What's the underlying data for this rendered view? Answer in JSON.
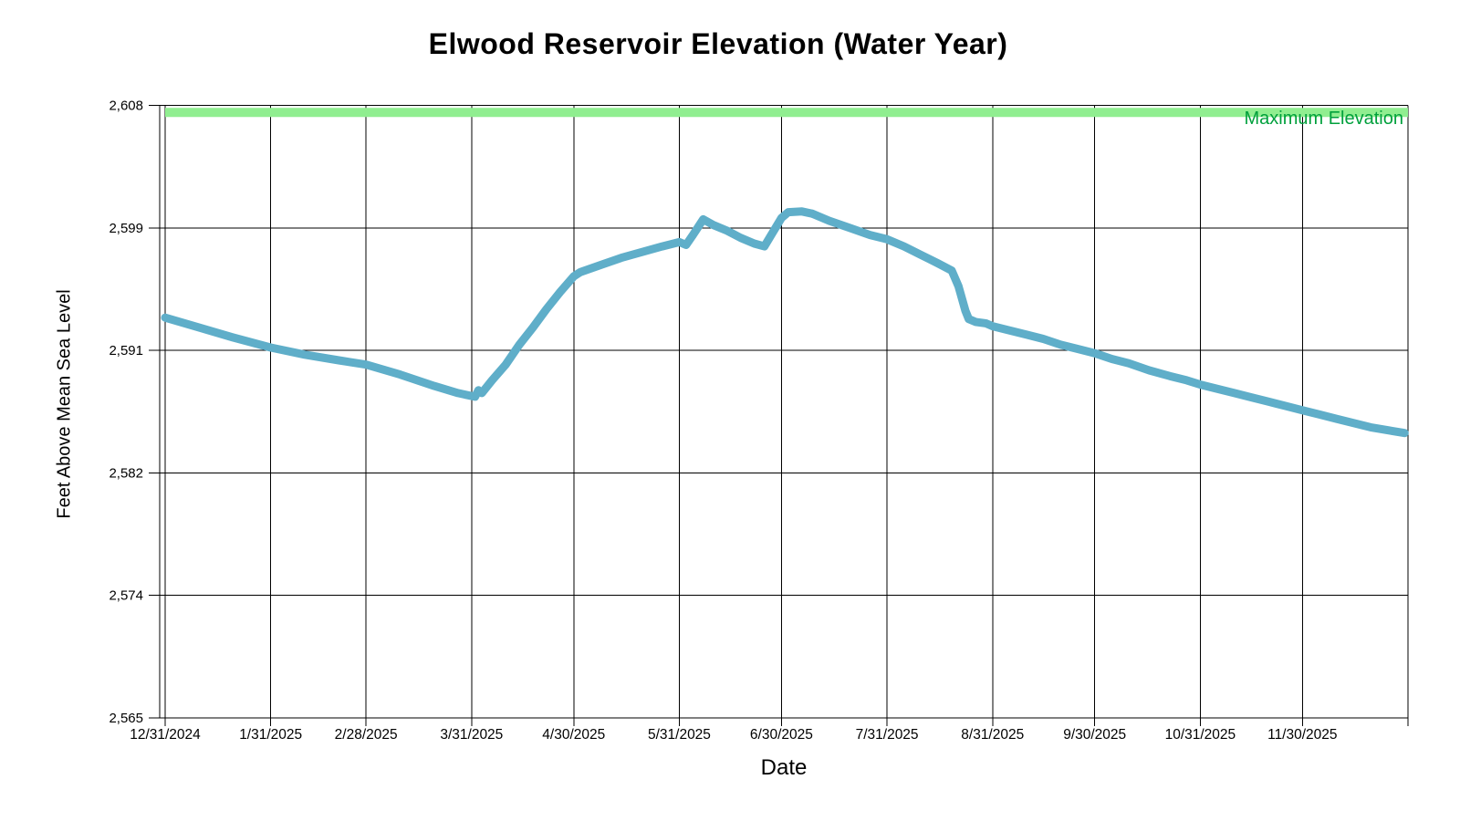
{
  "page": {
    "background": "#ffffff"
  },
  "chart_data": {
    "type": "line",
    "title": "Elwood Reservoir Elevation (Water Year)",
    "xlabel": "Date",
    "ylabel": "Feet Above Mean Sea Level",
    "grid": true,
    "legend_position": "none",
    "x_axis": {
      "start_date": "12/31/2024",
      "end_date": "12/31/2025",
      "ticks": [
        {
          "date": "12/31/2024",
          "label": "12/31/2024"
        },
        {
          "date": "1/31/2025",
          "label": "1/31/2025"
        },
        {
          "date": "2/28/2025",
          "label": "2/28/2025"
        },
        {
          "date": "3/31/2025",
          "label": "3/31/2025"
        },
        {
          "date": "4/30/2025",
          "label": "4/30/2025"
        },
        {
          "date": "5/31/2025",
          "label": "5/31/2025"
        },
        {
          "date": "6/30/2025",
          "label": "6/30/2025"
        },
        {
          "date": "7/31/2025",
          "label": "7/31/2025"
        },
        {
          "date": "8/31/2025",
          "label": "8/31/2025"
        },
        {
          "date": "9/30/2025",
          "label": "9/30/2025"
        },
        {
          "date": "10/31/2025",
          "label": "10/31/2025"
        },
        {
          "date": "11/30/2025",
          "label": "11/30/2025"
        },
        {
          "date": "12/31/2025",
          "label": ""
        }
      ]
    },
    "y_axis": {
      "min": 2565,
      "max": 2608,
      "ticks": [
        {
          "value": 2565,
          "label": "2,565"
        },
        {
          "value": 2573.6,
          "label": "2,574"
        },
        {
          "value": 2582.2,
          "label": "2,582"
        },
        {
          "value": 2590.8,
          "label": "2,591"
        },
        {
          "value": 2599.4,
          "label": "2,599"
        },
        {
          "value": 2608,
          "label": "2,608"
        }
      ]
    },
    "max_elevation": {
      "value": 2607.5,
      "label": "Maximum Elevation",
      "line_color": "#90EE90",
      "line_width": 10,
      "label_color": "#00A03C"
    },
    "series": [
      {
        "name": "elevation",
        "color": "#5FAEC9",
        "line_width": 9,
        "points": [
          [
            "12/31/2024",
            2593.1
          ],
          [
            "1/10/2025",
            2592.4
          ],
          [
            "1/20/2025",
            2591.7
          ],
          [
            "1/31/2025",
            2591.0
          ],
          [
            "2/10/2025",
            2590.5
          ],
          [
            "2/20/2025",
            2590.1
          ],
          [
            "2/28/2025",
            2589.8
          ],
          [
            "3/10/2025",
            2589.1
          ],
          [
            "3/20/2025",
            2588.3
          ],
          [
            "3/27/2025",
            2587.8
          ],
          [
            "3/31/2025",
            2587.6
          ],
          [
            "4/1/2025",
            2587.55
          ],
          [
            "4/2/2025",
            2588.0
          ],
          [
            "4/3/2025",
            2587.8
          ],
          [
            "4/6/2025",
            2588.7
          ],
          [
            "4/10/2025",
            2589.8
          ],
          [
            "4/14/2025",
            2591.2
          ],
          [
            "4/18/2025",
            2592.4
          ],
          [
            "4/22/2025",
            2593.7
          ],
          [
            "4/26/2025",
            2594.9
          ],
          [
            "4/30/2025",
            2596.0
          ],
          [
            "5/2/2025",
            2596.3
          ],
          [
            "5/8/2025",
            2596.8
          ],
          [
            "5/14/2025",
            2597.3
          ],
          [
            "5/20/2025",
            2597.7
          ],
          [
            "5/26/2025",
            2598.1
          ],
          [
            "5/31/2025",
            2598.4
          ],
          [
            "6/2/2025",
            2598.2
          ],
          [
            "6/4/2025",
            2598.9
          ],
          [
            "6/7/2025",
            2600.0
          ],
          [
            "6/10/2025",
            2599.6
          ],
          [
            "6/14/2025",
            2599.2
          ],
          [
            "6/18/2025",
            2598.7
          ],
          [
            "6/22/2025",
            2598.3
          ],
          [
            "6/25/2025",
            2598.1
          ],
          [
            "6/27/2025",
            2598.9
          ],
          [
            "6/30/2025",
            2600.1
          ],
          [
            "7/2/2025",
            2600.5
          ],
          [
            "7/6/2025",
            2600.55
          ],
          [
            "7/9/2025",
            2600.4
          ],
          [
            "7/14/2025",
            2599.9
          ],
          [
            "7/20/2025",
            2599.4
          ],
          [
            "7/26/2025",
            2598.9
          ],
          [
            "7/31/2025",
            2598.6
          ],
          [
            "8/5/2025",
            2598.1
          ],
          [
            "8/10/2025",
            2597.5
          ],
          [
            "8/15/2025",
            2596.9
          ],
          [
            "8/19/2025",
            2596.4
          ],
          [
            "8/21/2025",
            2595.3
          ],
          [
            "8/23/2025",
            2593.6
          ],
          [
            "8/24/2025",
            2593.0
          ],
          [
            "8/26/2025",
            2592.8
          ],
          [
            "8/29/2025",
            2592.7
          ],
          [
            "8/31/2025",
            2592.5
          ],
          [
            "9/5/2025",
            2592.2
          ],
          [
            "9/10/2025",
            2591.9
          ],
          [
            "9/15/2025",
            2591.6
          ],
          [
            "9/20/2025",
            2591.2
          ],
          [
            "9/25/2025",
            2590.9
          ],
          [
            "9/30/2025",
            2590.6
          ],
          [
            "10/5/2025",
            2590.2
          ],
          [
            "10/10/2025",
            2589.9
          ],
          [
            "10/16/2025",
            2589.4
          ],
          [
            "10/22/2025",
            2589.0
          ],
          [
            "10/27/2025",
            2588.7
          ],
          [
            "10/31/2025",
            2588.4
          ],
          [
            "11/5/2025",
            2588.1
          ],
          [
            "11/10/2025",
            2587.8
          ],
          [
            "11/15/2025",
            2587.5
          ],
          [
            "11/20/2025",
            2587.2
          ],
          [
            "11/25/2025",
            2586.9
          ],
          [
            "11/30/2025",
            2586.6
          ],
          [
            "12/5/2025",
            2586.3
          ],
          [
            "12/10/2025",
            2586.0
          ],
          [
            "12/15/2025",
            2585.7
          ],
          [
            "12/20/2025",
            2585.4
          ],
          [
            "12/25/2025",
            2585.2
          ],
          [
            "12/30/2025",
            2585.0
          ]
        ]
      }
    ]
  }
}
